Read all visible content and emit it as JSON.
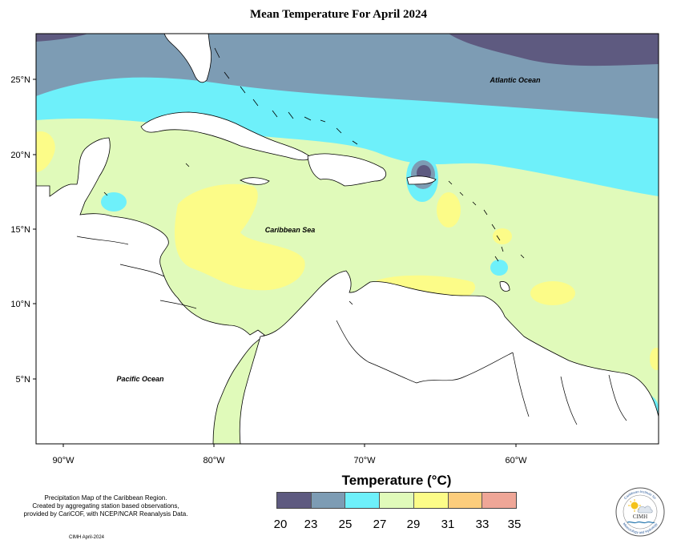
{
  "title": "Mean Temperature For April 2024",
  "map_labels": {
    "atlantic": "Atlantic Ocean",
    "caribbean": "Caribbean Sea",
    "pacific": "Pacific Ocean"
  },
  "axes": {
    "lat_ticks": [
      "25°N",
      "20°N",
      "15°N",
      "10°N",
      "5°N"
    ],
    "lon_ticks": [
      "90°W",
      "80°W",
      "70°W",
      "60°W"
    ]
  },
  "legend": {
    "title": "Temperature (°C)",
    "ticks": [
      "20",
      "23",
      "25",
      "27",
      "29",
      "31",
      "33",
      "35"
    ],
    "colors": [
      "#5e5a80",
      "#7d9cb4",
      "#6ef0fa",
      "#e0faba",
      "#fcfc88",
      "#fccd7c",
      "#efa697"
    ]
  },
  "credits": {
    "line1": "Precipitation Map of the Caribbean Region.",
    "line2": "Created by aggregating station based observations,",
    "line3": "provided by CariCOF, with NCEP/NCAR Reanalysis Data."
  },
  "footer": "CIMH April-2024",
  "logo": {
    "top_text": "Caribbean Institute for",
    "bottom_text": "Meteorology and Hydrology",
    "abbr": "CIMH"
  }
}
